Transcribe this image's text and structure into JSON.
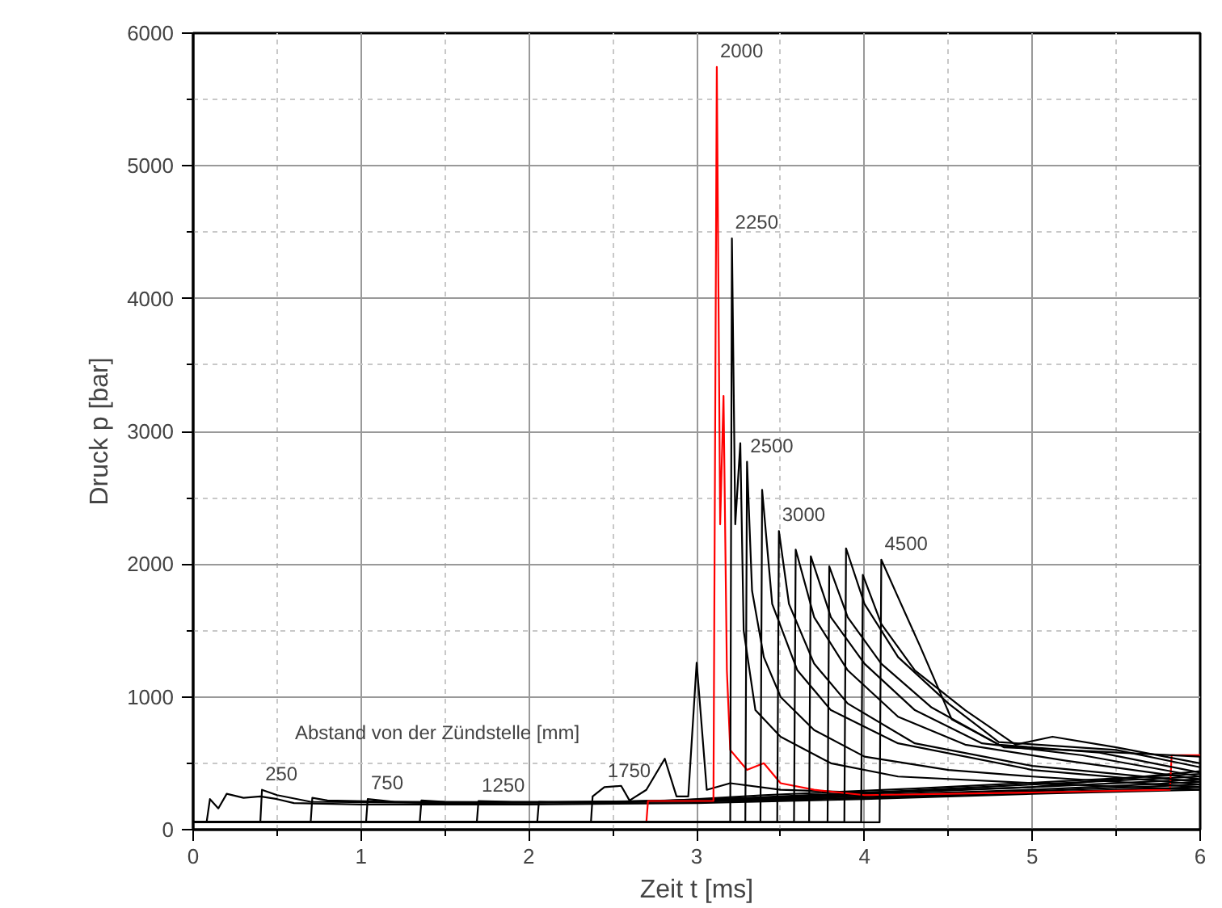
{
  "chart_data": {
    "type": "line",
    "xlabel": "Zeit t [ms]",
    "ylabel": "Druck p [bar]",
    "xlim": [
      0,
      6
    ],
    "ylim": [
      0,
      6000
    ],
    "xticks": [
      0,
      1,
      2,
      3,
      4,
      5,
      6
    ],
    "yticks": [
      0,
      1000,
      2000,
      3000,
      4000,
      5000,
      6000
    ],
    "grid": true,
    "line_style": "solid",
    "annotations": [
      "Abstand von der Zündstelle [mm]",
      {
        "text": "250",
        "x": 0.41,
        "y": 300
      },
      {
        "text": "750",
        "x": 1.04,
        "y": 230
      },
      {
        "text": "1250",
        "x": 1.7,
        "y": 215
      },
      {
        "text": "1750",
        "x": 2.45,
        "y": 320
      },
      {
        "text": "2000",
        "x": 3.12,
        "y": 5745
      },
      {
        "text": "2250",
        "x": 3.21,
        "y": 4453
      },
      {
        "text": "2500",
        "x": 3.3,
        "y": 2771
      },
      {
        "text": "3000",
        "x": 3.49,
        "y": 2250
      },
      {
        "text": "4500",
        "x": 4.1,
        "y": 2034
      }
    ],
    "series": [
      {
        "color": "#000000",
        "x": [
          0,
          0.08,
          0.1,
          0.15,
          0.2,
          0.3,
          0.4,
          0.5,
          0.6,
          1.0,
          2.0,
          3.0,
          4.0,
          5.0,
          6.0
        ],
        "values": [
          55,
          55,
          230,
          160,
          270,
          240,
          250,
          230,
          200,
          190,
          190,
          200,
          230,
          270,
          300
        ]
      },
      {
        "color": "#000000",
        "x": [
          0,
          0.4,
          0.41,
          0.5,
          0.7,
          1.5,
          3.0,
          4.0,
          5.0,
          6.0
        ],
        "values": [
          55,
          55,
          300,
          260,
          210,
          200,
          210,
          240,
          280,
          320
        ]
      },
      {
        "color": "#000000",
        "x": [
          0,
          0.7,
          0.71,
          0.8,
          1.5,
          3.0,
          4.0,
          5.0,
          6.0
        ],
        "values": [
          55,
          55,
          240,
          220,
          200,
          215,
          250,
          290,
          340
        ]
      },
      {
        "color": "#000000",
        "x": [
          0,
          1.03,
          1.04,
          1.2,
          2.0,
          3.0,
          4.0,
          5.0,
          6.0
        ],
        "values": [
          55,
          55,
          230,
          210,
          205,
          220,
          260,
          300,
          360
        ]
      },
      {
        "color": "#000000",
        "x": [
          0,
          1.35,
          1.36,
          1.5,
          2.3,
          3.2,
          4.0,
          5.0,
          6.0
        ],
        "values": [
          55,
          55,
          220,
          210,
          205,
          230,
          270,
          320,
          380
        ]
      },
      {
        "color": "#000000",
        "x": [
          0,
          1.69,
          1.7,
          1.9,
          2.6,
          3.3,
          4.2,
          5.0,
          6.0
        ],
        "values": [
          55,
          55,
          215,
          210,
          210,
          240,
          290,
          340,
          400
        ]
      },
      {
        "color": "#000000",
        "x": [
          0,
          2.05,
          2.06,
          2.2,
          2.8,
          3.4,
          4.3,
          5.1,
          6.0
        ],
        "values": [
          55,
          55,
          210,
          205,
          215,
          260,
          310,
          360,
          420
        ]
      },
      {
        "color": "#000000",
        "x": [
          0,
          2.37,
          2.38,
          2.45,
          2.55,
          2.6,
          2.7,
          2.81,
          2.88,
          2.95,
          3.0,
          3.06,
          3.2,
          3.5,
          4.0,
          5.0,
          6.0
        ],
        "values": [
          55,
          55,
          250,
          320,
          330,
          220,
          300,
          534,
          250,
          250,
          1258,
          300,
          350,
          300,
          280,
          320,
          440
        ]
      },
      {
        "color": "#ff0000",
        "x": [
          2.7,
          2.71,
          3.1,
          3.12,
          3.14,
          3.16,
          3.18,
          3.2,
          3.3,
          3.4,
          3.5,
          3.7,
          4.0,
          5.0,
          5.82,
          5.83,
          6.0
        ],
        "values": [
          50,
          216,
          216,
          5745,
          2300,
          3267,
          1200,
          600,
          450,
          500,
          350,
          300,
          260,
          280,
          300,
          560,
          560
        ]
      },
      {
        "color": "#000000",
        "x": [
          0,
          3.2,
          3.21,
          3.23,
          3.26,
          3.28,
          3.35,
          3.5,
          3.8,
          4.2,
          5.0,
          6.0
        ],
        "values": [
          55,
          55,
          4453,
          2300,
          2911,
          1500,
          900,
          700,
          500,
          400,
          350,
          300
        ]
      },
      {
        "color": "#000000",
        "x": [
          0,
          3.29,
          3.3,
          3.33,
          3.4,
          3.5,
          3.7,
          4.0,
          4.5,
          5.0,
          6.0
        ],
        "values": [
          55,
          55,
          2771,
          1800,
          1300,
          1000,
          750,
          550,
          450,
          400,
          320
        ]
      },
      {
        "color": "#000000",
        "x": [
          0,
          3.38,
          3.39,
          3.45,
          3.6,
          3.8,
          4.2,
          5.0,
          6.0
        ],
        "values": [
          55,
          55,
          2559,
          1700,
          1200,
          900,
          650,
          450,
          340
        ]
      },
      {
        "color": "#000000",
        "x": [
          0,
          3.48,
          3.49,
          3.55,
          3.7,
          3.9,
          4.3,
          5.0,
          6.0
        ],
        "values": [
          55,
          55,
          2250,
          1700,
          1250,
          950,
          650,
          480,
          360
        ]
      },
      {
        "color": "#000000",
        "x": [
          0,
          3.58,
          3.59,
          3.7,
          3.9,
          4.2,
          4.6,
          5.2,
          6.0
        ],
        "values": [
          55,
          55,
          2110,
          1600,
          1200,
          850,
          640,
          520,
          380
        ]
      },
      {
        "color": "#000000",
        "x": [
          0,
          3.67,
          3.68,
          3.8,
          4.0,
          4.3,
          4.7,
          5.3,
          6.0
        ],
        "values": [
          55,
          55,
          2059,
          1600,
          1250,
          900,
          650,
          560,
          400
        ]
      },
      {
        "color": "#000000",
        "x": [
          0,
          3.78,
          3.79,
          3.9,
          4.1,
          4.4,
          4.8,
          5.4,
          6.0
        ],
        "values": [
          55,
          55,
          1983,
          1600,
          1250,
          920,
          640,
          580,
          430
        ]
      },
      {
        "color": "#000000",
        "x": [
          0,
          3.88,
          3.89,
          4.0,
          4.2,
          4.5,
          4.8,
          5.5,
          6.0
        ],
        "values": [
          55,
          55,
          2119,
          1700,
          1300,
          950,
          660,
          600,
          470
        ]
      },
      {
        "color": "#000000",
        "x": [
          0,
          3.98,
          3.99,
          4.1,
          4.3,
          4.6,
          4.9,
          5.12,
          5.5,
          6.0
        ],
        "values": [
          55,
          55,
          1919,
          1550,
          1200,
          900,
          640,
          700,
          620,
          500
        ]
      },
      {
        "color": "#000000",
        "x": [
          0,
          4.09,
          4.1,
          4.2,
          4.33,
          4.52,
          4.83,
          5.2,
          6.0
        ],
        "values": [
          55,
          55,
          2034,
          1750,
          1385,
          830,
          620,
          600,
          550
        ]
      }
    ]
  }
}
